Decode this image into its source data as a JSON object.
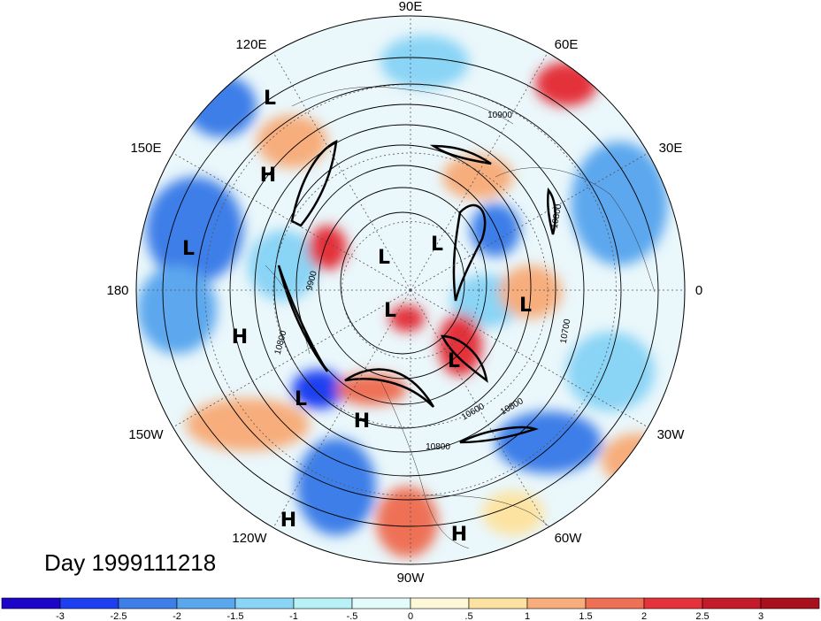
{
  "day_label": "Day 1999111218",
  "longitude_labels": [
    {
      "text": "90E"
    },
    {
      "text": "60E"
    },
    {
      "text": "30E"
    },
    {
      "text": "0"
    },
    {
      "text": "30W"
    },
    {
      "text": "60W"
    },
    {
      "text": "90W"
    },
    {
      "text": "120W"
    },
    {
      "text": "150W"
    },
    {
      "text": "180"
    },
    {
      "text": "150E"
    },
    {
      "text": "120E"
    }
  ],
  "pressure_centers": [
    {
      "type": "L"
    },
    {
      "type": "H"
    },
    {
      "type": "L"
    },
    {
      "type": "H"
    },
    {
      "type": "L"
    },
    {
      "type": "L"
    },
    {
      "type": "L"
    },
    {
      "type": "L"
    },
    {
      "type": "L"
    },
    {
      "type": "L"
    },
    {
      "type": "H"
    },
    {
      "type": "H"
    },
    {
      "type": "H"
    }
  ],
  "contour_labels": [
    "10900",
    "10800",
    "9900",
    "10800",
    "10700",
    "10800",
    "10600",
    "10800"
  ],
  "colorbar": {
    "colors": [
      "#1c05c7",
      "#1d3ff0",
      "#3d7ee8",
      "#5ba7ee",
      "#8ad4f5",
      "#b8f2f7",
      "#e3fbfb",
      "#fdf8d8",
      "#fde3a2",
      "#f7ad7c",
      "#ee7156",
      "#e4333a",
      "#c51a2a",
      "#a8101d"
    ],
    "tick_labels": [
      "-3",
      "-2.5",
      "-2",
      "-1.5",
      "-1",
      "-.5",
      "0",
      ".5",
      "1",
      "1.5",
      "2",
      "2.5",
      "3"
    ]
  }
}
